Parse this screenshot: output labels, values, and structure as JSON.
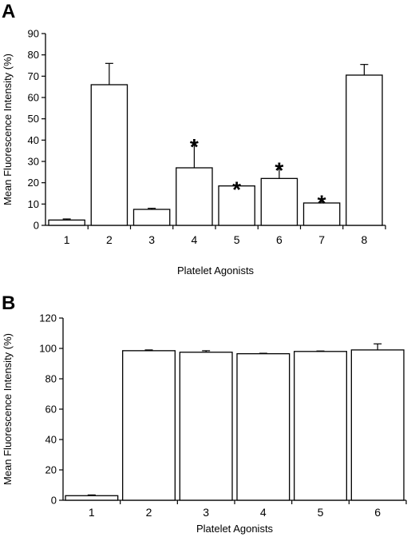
{
  "figure": {
    "panels": [
      {
        "letter": "A"
      },
      {
        "letter": "B"
      }
    ]
  },
  "chart_data": [
    {
      "type": "bar",
      "panel": "A",
      "categories": [
        "1",
        "2",
        "3",
        "4",
        "5",
        "6",
        "7",
        "8"
      ],
      "values": [
        2.5,
        66,
        7.5,
        27,
        18.5,
        22,
        10.5,
        70.5
      ],
      "errors": [
        0.5,
        10,
        0.5,
        12,
        0.5,
        6,
        2,
        5
      ],
      "significant": [
        false,
        false,
        false,
        true,
        true,
        true,
        true,
        false
      ],
      "significance_marker": "*",
      "xlabel": "Platelet Agonists",
      "ylabel": "Mean Fluorescence Intensity (%)",
      "ylim": [
        0,
        90
      ],
      "yticks": [
        "0",
        "10",
        "20",
        "30",
        "40",
        "50",
        "60",
        "70",
        "80",
        "90"
      ],
      "bar_color": "#ffffff",
      "grid": false
    },
    {
      "type": "bar",
      "panel": "B",
      "categories": [
        "1",
        "2",
        "3",
        "4",
        "5",
        "6"
      ],
      "values": [
        3,
        98.5,
        97.5,
        96.5,
        98,
        99
      ],
      "errors": [
        0.5,
        0.5,
        1,
        0.3,
        0.3,
        4
      ],
      "xlabel": "Platelet Agonists",
      "ylabel": "Mean Fluorescence Intensity (%)",
      "ylim": [
        0,
        120
      ],
      "yticks": [
        "0",
        "20",
        "40",
        "60",
        "80",
        "100",
        "120"
      ],
      "bar_color": "#ffffff",
      "grid": false
    }
  ]
}
